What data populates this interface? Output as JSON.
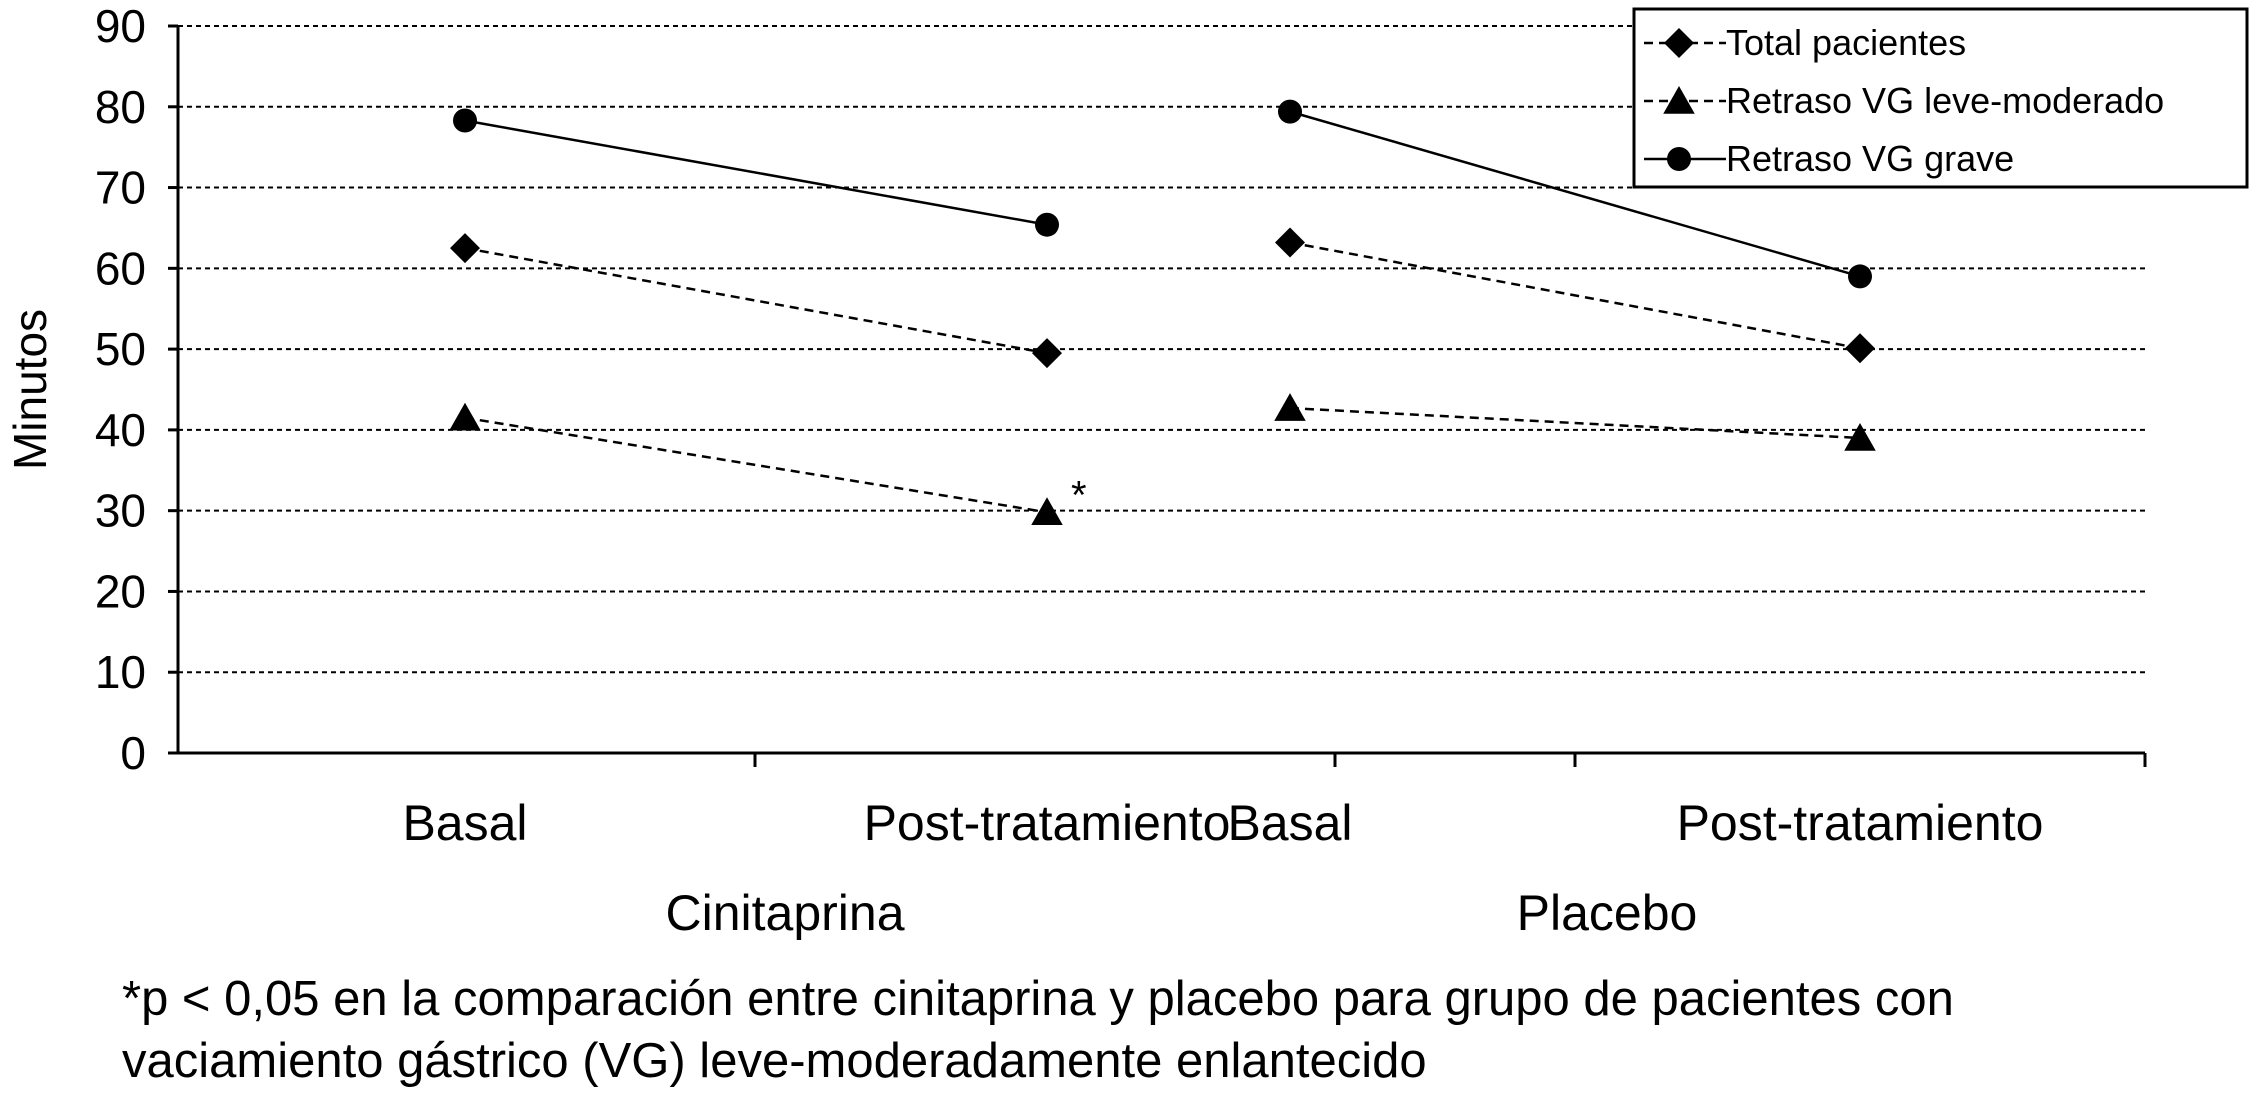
{
  "chart_data": {
    "type": "line",
    "ylabel": "Minutos",
    "xlabel": "",
    "ylim": [
      0,
      90
    ],
    "yticks": [
      0,
      10,
      20,
      30,
      40,
      50,
      60,
      70,
      80,
      90
    ],
    "grid": true,
    "legend_position": "top-right",
    "groups": [
      {
        "name": "Cinitaprina",
        "categories": [
          "Basal",
          "Post-tratamiento"
        ]
      },
      {
        "name": "Placebo",
        "categories": [
          "Basal",
          "Post-tratamiento"
        ]
      }
    ],
    "series": [
      {
        "name": "Total pacientes",
        "marker": "diamond",
        "line": "dashed",
        "segments": [
          {
            "group": "Cinitaprina",
            "values": [
              62.5,
              49.5
            ]
          },
          {
            "group": "Placebo",
            "values": [
              63.2,
              50.1
            ]
          }
        ]
      },
      {
        "name": "Retraso VG leve-moderado",
        "marker": "triangle",
        "line": "dashed",
        "segments": [
          {
            "group": "Cinitaprina",
            "values": [
              41.5,
              29.8
            ]
          },
          {
            "group": "Placebo",
            "values": [
              42.7,
              39.0
            ]
          }
        ]
      },
      {
        "name": "Retraso VG grave",
        "marker": "circle",
        "line": "solid",
        "segments": [
          {
            "group": "Cinitaprina",
            "values": [
              78.3,
              65.4
            ]
          },
          {
            "group": "Placebo",
            "values": [
              79.4,
              59.0
            ]
          }
        ]
      }
    ],
    "annotations": [
      {
        "text": "*",
        "series": "Retraso VG leve-moderado",
        "group": "Cinitaprina",
        "category": "Post-tratamiento"
      }
    ]
  },
  "footnote": {
    "line1": "*p < 0,05 en la comparación entre cinitaprina y placebo para grupo de pacientes con",
    "line2": "vaciamiento gástrico (VG) leve-moderadamente enlantecido"
  }
}
